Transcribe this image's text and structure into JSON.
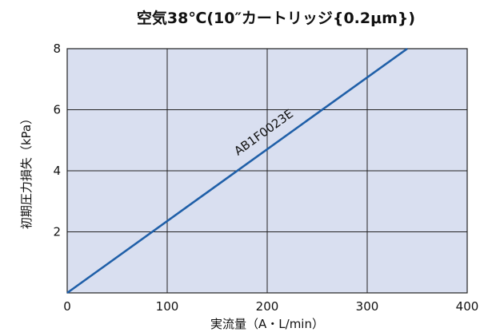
{
  "chart_data": {
    "type": "line",
    "title": "空気38℃(10″カートリッジ{0.2μm})",
    "xlabel": "実流量（A・L/min）",
    "ylabel": "初期圧力損失（kPa）",
    "xlim": [
      0,
      400
    ],
    "ylim": [
      0,
      8
    ],
    "xticks": [
      0,
      100,
      200,
      300,
      400
    ],
    "yticks": [
      2,
      4,
      6,
      8
    ],
    "grid": true,
    "plot_background": "#d9dff0",
    "series": [
      {
        "name": "AB1F0023E",
        "color": "#1f5fa8",
        "x": [
          0,
          340
        ],
        "y": [
          0,
          8
        ]
      }
    ]
  }
}
